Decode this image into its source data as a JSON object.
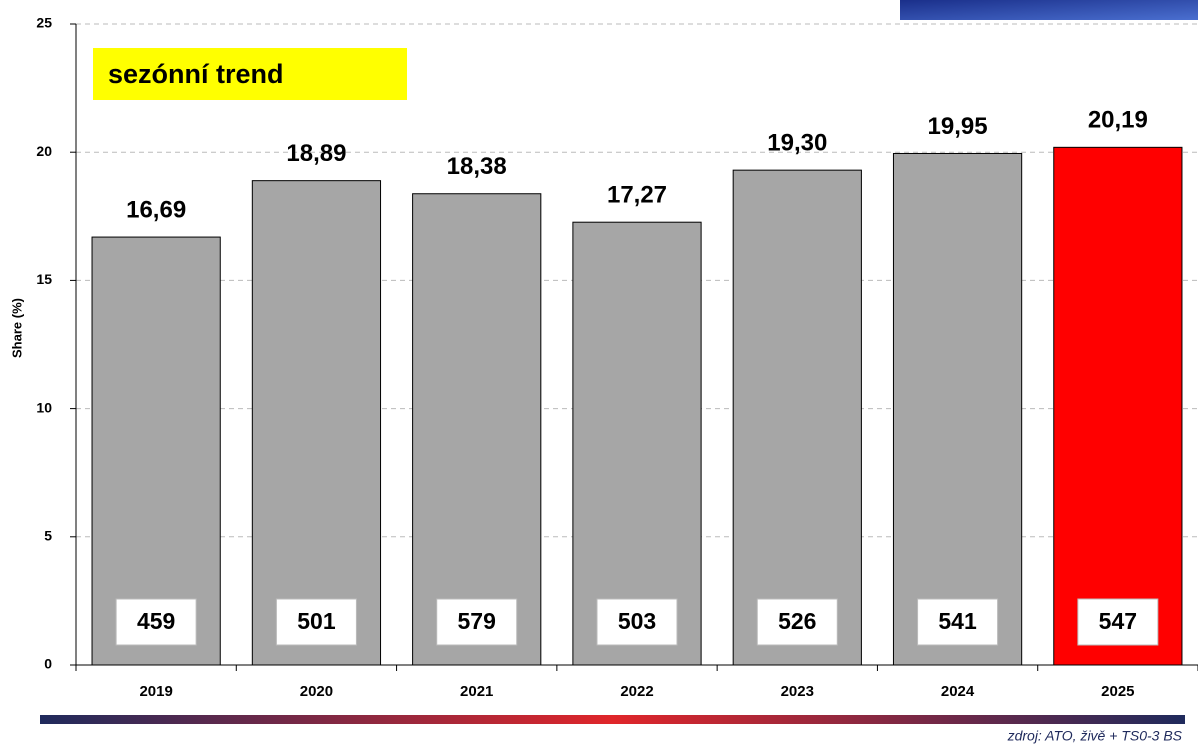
{
  "chart_data": {
    "type": "bar",
    "title": "sezónní trend",
    "y_label": "Share (%)",
    "categories": [
      "2019",
      "2020",
      "2021",
      "2022",
      "2023",
      "2024",
      "2025"
    ],
    "values": [
      16.69,
      18.89,
      18.38,
      17.27,
      19.3,
      19.95,
      20.19
    ],
    "value_labels": [
      "16,69",
      "18,89",
      "18,38",
      "17,27",
      "19,30",
      "19,95",
      "20,19"
    ],
    "box_labels": [
      459,
      501,
      579,
      503,
      526,
      541,
      547
    ],
    "colors": [
      "#a6a6a6",
      "#a6a6a6",
      "#a6a6a6",
      "#a6a6a6",
      "#a6a6a6",
      "#a6a6a6",
      "#ff0000"
    ],
    "ylim": [
      0,
      25
    ],
    "yticks": [
      0,
      5,
      10,
      15,
      20,
      25
    ],
    "grid": true,
    "source": "zdroj: ATO, živě + TS0-3 BS"
  }
}
